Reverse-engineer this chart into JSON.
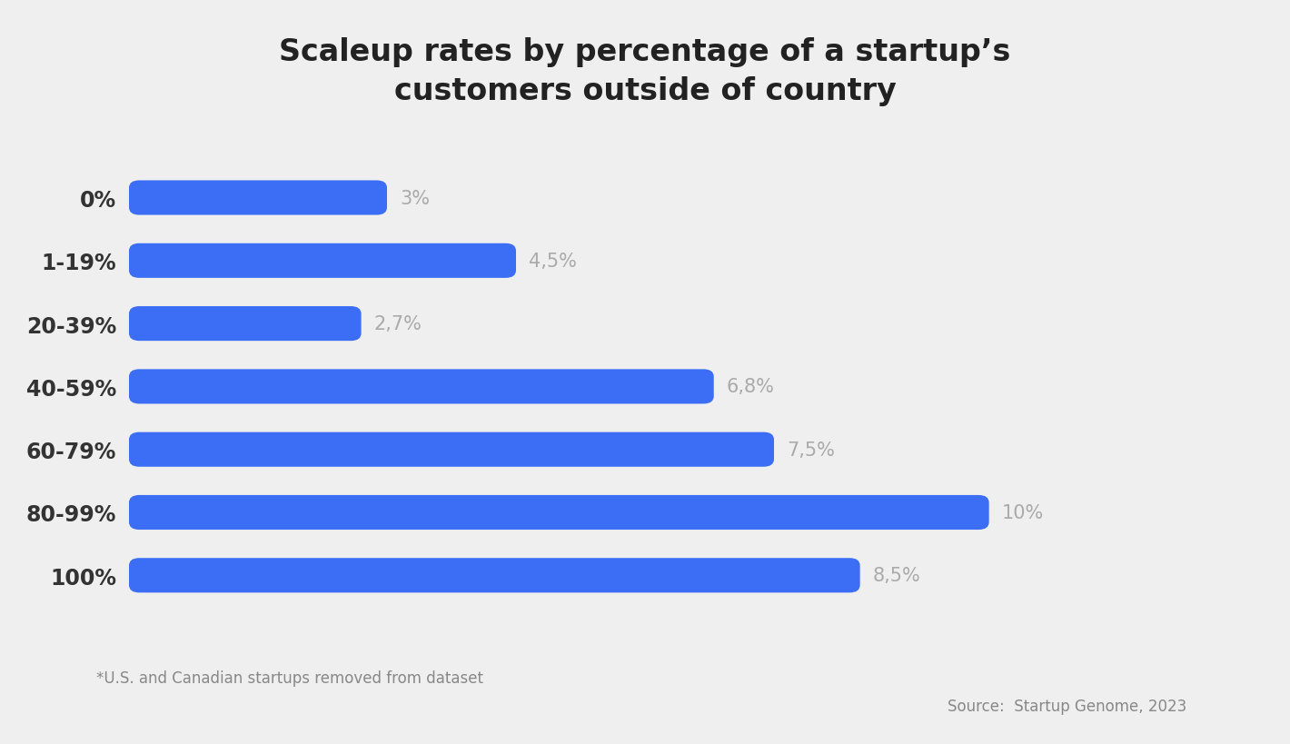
{
  "title": "Scaleup rates by percentage of a startup’s\ncustomers outside of country",
  "categories": [
    "0%",
    "1-19%",
    "20-39%",
    "40-59%",
    "60-79%",
    "80-99%",
    "100%"
  ],
  "values": [
    3.0,
    4.5,
    2.7,
    6.8,
    7.5,
    10.0,
    8.5
  ],
  "labels": [
    "3%",
    "4,5%",
    "2,7%",
    "6,8%",
    "7,5%",
    "10%",
    "8,5%"
  ],
  "bar_color": "#3B6EF5",
  "background_color": "#EFEFEF",
  "title_fontsize": 24,
  "label_fontsize": 15,
  "category_fontsize": 17,
  "footnote": "*U.S. and Canadian startups removed from dataset",
  "source": "Source:  Startup Genome, 2023",
  "xlim": [
    0,
    12.0
  ],
  "bar_height": 0.55,
  "bar_gap": 0.82
}
